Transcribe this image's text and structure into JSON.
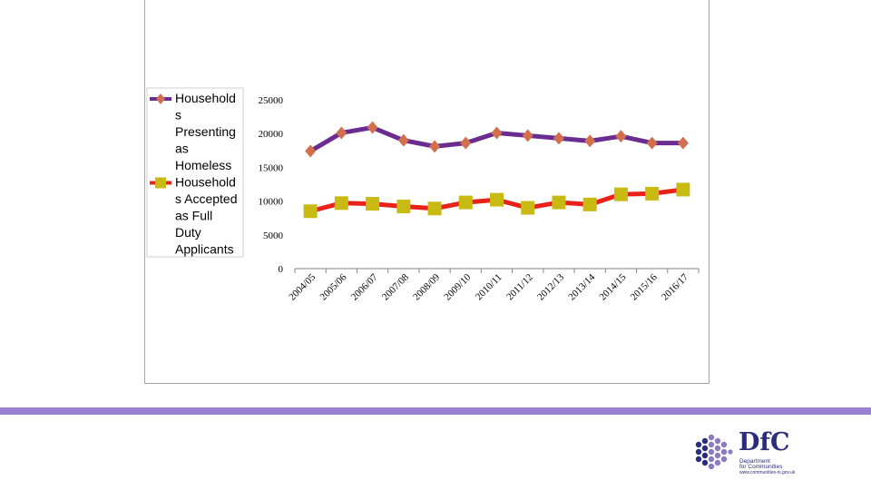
{
  "chart_data": {
    "type": "line",
    "categories": [
      "2004/05",
      "2005/06",
      "2006/07",
      "2007/08",
      "2008/09",
      "2009/10",
      "2010/11",
      "2011/12",
      "2012/13",
      "2013/14",
      "2014/15",
      "2015/16",
      "2016/17"
    ],
    "series": [
      {
        "name": "Households Presenting as Homeless",
        "legend_lines": [
          "Household",
          "s",
          "Presenting",
          "as",
          "Homeless"
        ],
        "color": "#6a2c91",
        "marker": "diamond",
        "marker_color": "#d2704e",
        "values": [
          17400,
          20100,
          20900,
          19000,
          18100,
          18600,
          20100,
          19700,
          19300,
          18900,
          19600,
          18600,
          18600
        ]
      },
      {
        "name": "Households Accepted as Full Duty Applicants",
        "legend_lines": [
          "Household",
          "s Accepted",
          "as Full",
          "Duty",
          "Applicants"
        ],
        "color": "#e8221b",
        "marker": "square",
        "marker_color": "#c8ba13",
        "values": [
          8500,
          9700,
          9600,
          9200,
          8900,
          9800,
          10200,
          9000,
          9800,
          9500,
          11000,
          11100,
          11700
        ]
      }
    ],
    "yticks": [
      0,
      5000,
      10000,
      15000,
      20000,
      25000
    ],
    "ylim": [
      0,
      25000
    ],
    "title": "",
    "xlabel": "",
    "ylabel": "",
    "legend_position": "left"
  },
  "logo": {
    "mark": "DfC",
    "line1": "Department",
    "line2": "for Communities",
    "url": "www.communities-ni.gov.uk",
    "color": "#2b2d7a"
  },
  "band_color": "#9b82d0"
}
